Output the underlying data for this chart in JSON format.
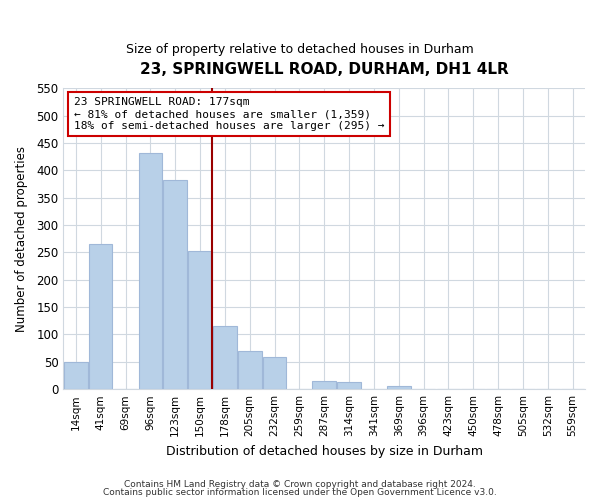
{
  "title": "23, SPRINGWELL ROAD, DURHAM, DH1 4LR",
  "subtitle": "Size of property relative to detached houses in Durham",
  "xlabel": "Distribution of detached houses by size in Durham",
  "ylabel": "Number of detached properties",
  "bar_labels": [
    "14sqm",
    "41sqm",
    "69sqm",
    "96sqm",
    "123sqm",
    "150sqm",
    "178sqm",
    "205sqm",
    "232sqm",
    "259sqm",
    "287sqm",
    "314sqm",
    "341sqm",
    "369sqm",
    "396sqm",
    "423sqm",
    "450sqm",
    "478sqm",
    "505sqm",
    "532sqm",
    "559sqm"
  ],
  "bar_heights": [
    50,
    265,
    0,
    432,
    382,
    252,
    116,
    70,
    58,
    0,
    15,
    14,
    0,
    6,
    0,
    0,
    1,
    0,
    0,
    0,
    1
  ],
  "bar_color": "#b8d0e8",
  "bar_edgecolor": "#a0b8d8",
  "vline_x_index": 6,
  "vline_color": "#990000",
  "annotation_title": "23 SPRINGWELL ROAD: 177sqm",
  "annotation_line1": "← 81% of detached houses are smaller (1,359)",
  "annotation_line2": "18% of semi-detached houses are larger (295) →",
  "annotation_box_facecolor": "#ffffff",
  "annotation_box_edgecolor": "#cc0000",
  "ylim": [
    0,
    550
  ],
  "yticks": [
    0,
    50,
    100,
    150,
    200,
    250,
    300,
    350,
    400,
    450,
    500,
    550
  ],
  "footer_line1": "Contains HM Land Registry data © Crown copyright and database right 2024.",
  "footer_line2": "Contains public sector information licensed under the Open Government Licence v3.0.",
  "background_color": "#ffffff",
  "grid_color": "#d0d8e0"
}
